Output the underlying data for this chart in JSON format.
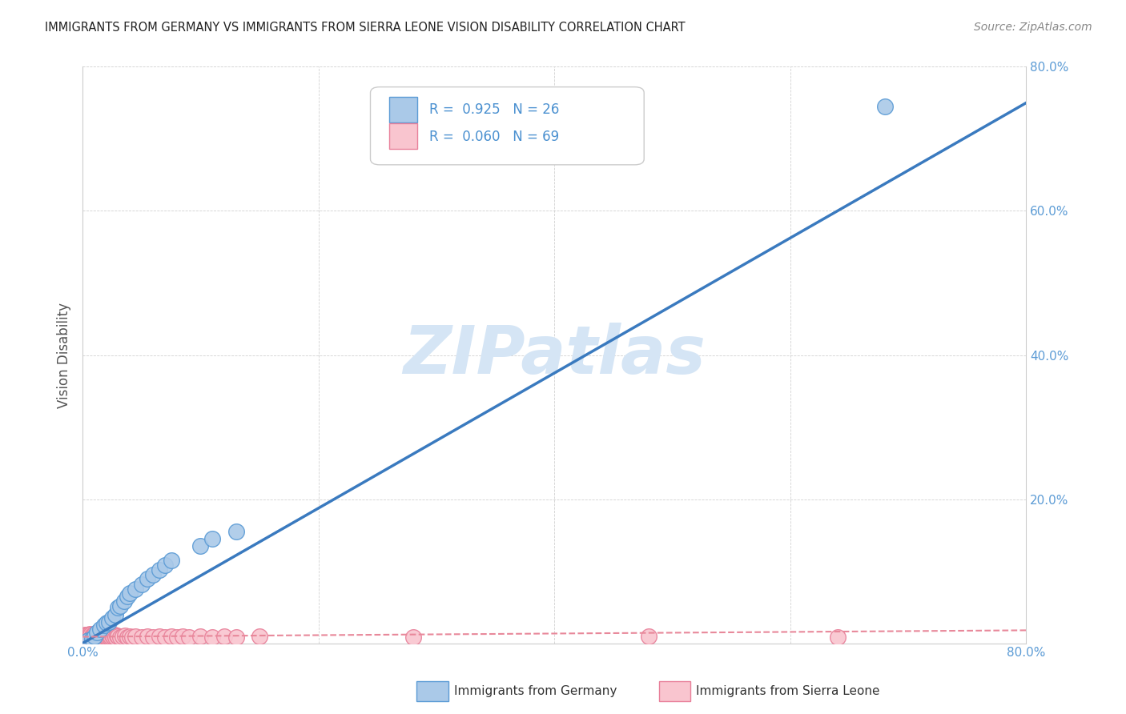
{
  "title": "IMMIGRANTS FROM GERMANY VS IMMIGRANTS FROM SIERRA LEONE VISION DISABILITY CORRELATION CHART",
  "source": "Source: ZipAtlas.com",
  "ylabel": "Vision Disability",
  "xlim": [
    0.0,
    0.8
  ],
  "ylim": [
    0.0,
    0.8
  ],
  "xticks": [
    0.0,
    0.2,
    0.4,
    0.6,
    0.8
  ],
  "yticks": [
    0.0,
    0.2,
    0.4,
    0.6,
    0.8
  ],
  "xtick_labels": [
    "0.0%",
    "",
    "",
    "",
    "80.0%"
  ],
  "ytick_labels": [
    "",
    "20.0%",
    "40.0%",
    "60.0%",
    "80.0%"
  ],
  "germany_color": "#aac9e8",
  "germany_edge_color": "#5b9bd5",
  "sierra_leone_color": "#f9c5cf",
  "sierra_leone_edge_color": "#e8809a",
  "germany_R": 0.925,
  "germany_N": 26,
  "sierra_leone_R": 0.06,
  "sierra_leone_N": 69,
  "germany_line_color": "#3a7abf",
  "sierra_leone_line_color": "#e8889a",
  "watermark": "ZIPatlas",
  "watermark_color": "#d5e5f5",
  "germany_scatter_x": [
    0.005,
    0.008,
    0.01,
    0.012,
    0.015,
    0.018,
    0.02,
    0.022,
    0.025,
    0.028,
    0.03,
    0.032,
    0.035,
    0.038,
    0.04,
    0.045,
    0.05,
    0.055,
    0.06,
    0.065,
    0.07,
    0.075,
    0.1,
    0.11,
    0.13,
    0.68
  ],
  "germany_scatter_y": [
    0.004,
    0.006,
    0.01,
    0.015,
    0.02,
    0.025,
    0.028,
    0.03,
    0.035,
    0.04,
    0.05,
    0.052,
    0.058,
    0.065,
    0.07,
    0.075,
    0.082,
    0.09,
    0.095,
    0.102,
    0.108,
    0.115,
    0.135,
    0.145,
    0.155,
    0.745
  ],
  "sierra_leone_scatter_x": [
    0.001,
    0.002,
    0.002,
    0.003,
    0.003,
    0.004,
    0.004,
    0.005,
    0.005,
    0.006,
    0.006,
    0.007,
    0.007,
    0.008,
    0.008,
    0.009,
    0.009,
    0.01,
    0.01,
    0.011,
    0.011,
    0.012,
    0.012,
    0.013,
    0.013,
    0.014,
    0.014,
    0.015,
    0.015,
    0.016,
    0.016,
    0.017,
    0.018,
    0.019,
    0.02,
    0.021,
    0.022,
    0.023,
    0.024,
    0.025,
    0.026,
    0.027,
    0.028,
    0.029,
    0.03,
    0.032,
    0.034,
    0.036,
    0.038,
    0.04,
    0.042,
    0.045,
    0.05,
    0.055,
    0.06,
    0.065,
    0.07,
    0.075,
    0.08,
    0.085,
    0.09,
    0.1,
    0.11,
    0.12,
    0.13,
    0.15,
    0.28,
    0.48,
    0.64
  ],
  "sierra_leone_scatter_y": [
    0.008,
    0.01,
    0.012,
    0.008,
    0.011,
    0.009,
    0.012,
    0.007,
    0.01,
    0.013,
    0.008,
    0.01,
    0.012,
    0.009,
    0.011,
    0.008,
    0.01,
    0.013,
    0.009,
    0.011,
    0.008,
    0.01,
    0.012,
    0.009,
    0.011,
    0.01,
    0.012,
    0.009,
    0.011,
    0.01,
    0.012,
    0.009,
    0.01,
    0.011,
    0.009,
    0.01,
    0.011,
    0.009,
    0.01,
    0.011,
    0.01,
    0.012,
    0.009,
    0.011,
    0.01,
    0.009,
    0.01,
    0.011,
    0.009,
    0.01,
    0.009,
    0.01,
    0.009,
    0.01,
    0.009,
    0.01,
    0.009,
    0.01,
    0.009,
    0.01,
    0.009,
    0.01,
    0.009,
    0.01,
    0.009,
    0.01,
    0.009,
    0.01,
    0.009
  ],
  "germany_line_x": [
    0.0,
    0.8
  ],
  "germany_line_y": [
    0.0,
    0.75
  ],
  "sierra_line_x": [
    0.0,
    0.8
  ],
  "sierra_line_y": [
    0.009,
    0.018
  ]
}
